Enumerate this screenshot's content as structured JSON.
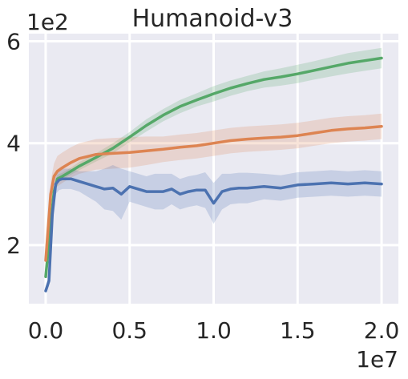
{
  "chart_data": {
    "type": "line",
    "title": "Humanoid-v3",
    "xlabel": "",
    "ylabel": "",
    "x_offset_label": "1e7",
    "y_offset_label": "1e2",
    "xlim": [
      -0.1,
      2.1
    ],
    "ylim": [
      0.85,
      6.15
    ],
    "x_ticks": [
      0.0,
      0.5,
      1.0,
      1.5,
      2.0
    ],
    "x_tick_labels": [
      "0.0",
      "0.5",
      "1.0",
      "1.5",
      "2.0"
    ],
    "y_ticks": [
      2,
      4,
      6
    ],
    "y_tick_labels": [
      "2",
      "4",
      "6"
    ],
    "grid": true,
    "background": "#eaeaf2",
    "series": [
      {
        "color": "#55a868",
        "x": [
          0.0,
          0.03,
          0.05,
          0.07,
          0.1,
          0.15,
          0.2,
          0.3,
          0.4,
          0.5,
          0.6,
          0.7,
          0.8,
          0.9,
          1.0,
          1.1,
          1.2,
          1.3,
          1.4,
          1.5,
          1.6,
          1.7,
          1.8,
          1.9,
          2.0
        ],
        "mean": [
          1.38,
          2.4,
          3.05,
          3.3,
          3.35,
          3.45,
          3.55,
          3.72,
          3.9,
          4.12,
          4.35,
          4.55,
          4.72,
          4.85,
          4.97,
          5.08,
          5.17,
          5.25,
          5.3,
          5.36,
          5.43,
          5.5,
          5.57,
          5.62,
          5.67
        ],
        "band": [
          0.05,
          0.1,
          0.1,
          0.08,
          0.07,
          0.07,
          0.08,
          0.08,
          0.1,
          0.1,
          0.12,
          0.12,
          0.13,
          0.13,
          0.15,
          0.15,
          0.15,
          0.16,
          0.17,
          0.18,
          0.18,
          0.19,
          0.2,
          0.2,
          0.2
        ]
      },
      {
        "color": "#dd8452",
        "x": [
          0.0,
          0.03,
          0.05,
          0.07,
          0.1,
          0.15,
          0.2,
          0.3,
          0.4,
          0.5,
          0.6,
          0.7,
          0.8,
          0.9,
          1.0,
          1.1,
          1.2,
          1.3,
          1.4,
          1.5,
          1.6,
          1.7,
          1.8,
          1.9,
          2.0
        ],
        "mean": [
          1.7,
          3.0,
          3.35,
          3.45,
          3.52,
          3.62,
          3.7,
          3.78,
          3.8,
          3.82,
          3.85,
          3.88,
          3.92,
          3.95,
          4.0,
          4.05,
          4.08,
          4.1,
          4.12,
          4.15,
          4.2,
          4.25,
          4.28,
          4.3,
          4.33
        ],
        "band": [
          0.1,
          0.25,
          0.25,
          0.3,
          0.3,
          0.3,
          0.3,
          0.3,
          0.3,
          0.3,
          0.28,
          0.25,
          0.25,
          0.25,
          0.25,
          0.25,
          0.25,
          0.25,
          0.25,
          0.25,
          0.25,
          0.25,
          0.25,
          0.25,
          0.25
        ]
      },
      {
        "color": "#4c72b0",
        "x": [
          0.0,
          0.02,
          0.04,
          0.06,
          0.08,
          0.1,
          0.15,
          0.2,
          0.25,
          0.3,
          0.35,
          0.4,
          0.45,
          0.5,
          0.55,
          0.6,
          0.65,
          0.7,
          0.75,
          0.8,
          0.85,
          0.9,
          0.95,
          1.0,
          1.05,
          1.1,
          1.15,
          1.2,
          1.3,
          1.4,
          1.5,
          1.6,
          1.7,
          1.8,
          1.9,
          2.0
        ],
        "mean": [
          1.1,
          1.3,
          2.6,
          3.2,
          3.28,
          3.3,
          3.3,
          3.25,
          3.2,
          3.15,
          3.1,
          3.12,
          3.0,
          3.15,
          3.1,
          3.05,
          3.05,
          3.05,
          3.1,
          3.0,
          3.05,
          3.08,
          3.08,
          2.82,
          3.05,
          3.1,
          3.12,
          3.12,
          3.15,
          3.12,
          3.18,
          3.2,
          3.22,
          3.2,
          3.22,
          3.2
        ],
        "band": [
          0.05,
          0.1,
          0.15,
          0.2,
          0.2,
          0.2,
          0.2,
          0.2,
          0.25,
          0.3,
          0.4,
          0.45,
          0.5,
          0.3,
          0.3,
          0.3,
          0.35,
          0.35,
          0.3,
          0.3,
          0.3,
          0.3,
          0.35,
          0.4,
          0.35,
          0.3,
          0.3,
          0.3,
          0.25,
          0.25,
          0.25,
          0.25,
          0.25,
          0.25,
          0.25,
          0.25
        ]
      }
    ]
  }
}
